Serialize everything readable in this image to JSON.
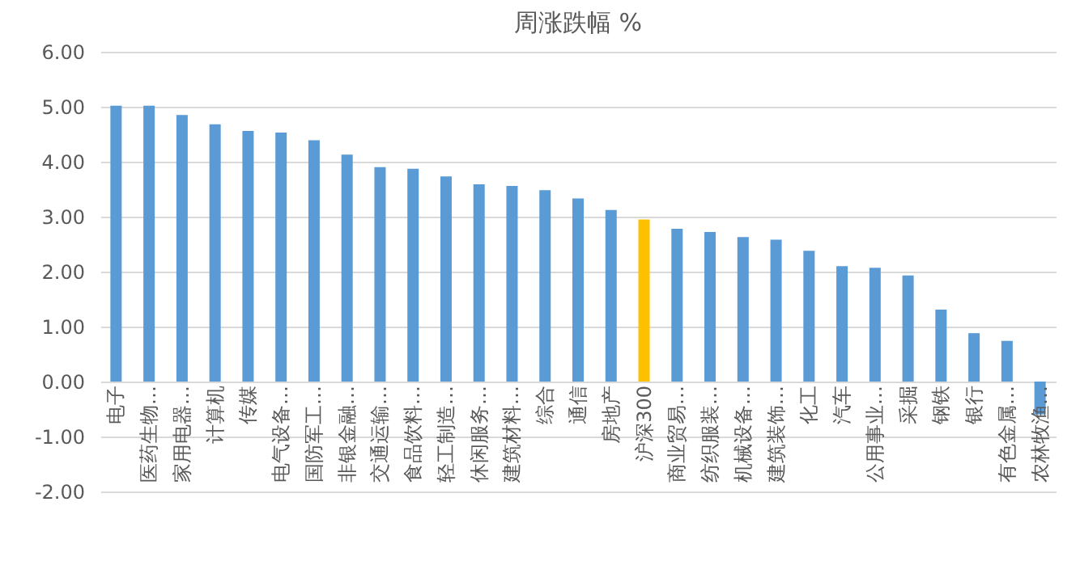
{
  "chart_data": {
    "type": "bar",
    "title": "周涨跌幅 %",
    "categories": [
      "电子",
      "医药生物…",
      "家用电器…",
      "计算机",
      "传媒",
      "电气设备…",
      "国防军工…",
      "非银金融…",
      "交通运输…",
      "食品饮料…",
      "轻工制造…",
      "休闲服务…",
      "建筑材料…",
      "综合",
      "通信",
      "房地产",
      "沪深300",
      "商业贸易…",
      "纺织服装…",
      "机械设备…",
      "建筑装饰…",
      "化工",
      "汽车",
      "公用事业…",
      "采掘",
      "钢铁",
      "银行",
      "有色金属…",
      "农林牧渔…"
    ],
    "values": [
      5.02,
      5.02,
      4.85,
      4.68,
      4.56,
      4.53,
      4.39,
      4.13,
      3.9,
      3.87,
      3.73,
      3.59,
      3.56,
      3.48,
      3.33,
      3.12,
      2.95,
      2.78,
      2.72,
      2.63,
      2.58,
      2.38,
      2.1,
      2.07,
      1.93,
      1.31,
      0.88,
      0.74,
      -0.6
    ],
    "colors": [
      "#5b9bd5",
      "#5b9bd5",
      "#5b9bd5",
      "#5b9bd5",
      "#5b9bd5",
      "#5b9bd5",
      "#5b9bd5",
      "#5b9bd5",
      "#5b9bd5",
      "#5b9bd5",
      "#5b9bd5",
      "#5b9bd5",
      "#5b9bd5",
      "#5b9bd5",
      "#5b9bd5",
      "#5b9bd5",
      "#ffc000",
      "#5b9bd5",
      "#5b9bd5",
      "#5b9bd5",
      "#5b9bd5",
      "#5b9bd5",
      "#5b9bd5",
      "#5b9bd5",
      "#5b9bd5",
      "#5b9bd5",
      "#5b9bd5",
      "#5b9bd5",
      "#5b9bd5"
    ],
    "ylim": [
      -2,
      6
    ],
    "yticks": [
      {
        "value": -2,
        "label": "-2.00"
      },
      {
        "value": -1,
        "label": "-1.00"
      },
      {
        "value": 0,
        "label": "0.00"
      },
      {
        "value": 1,
        "label": "1.00"
      },
      {
        "value": 2,
        "label": "2.00"
      },
      {
        "value": 3,
        "label": "3.00"
      },
      {
        "value": 4,
        "label": "4.00"
      },
      {
        "value": 5,
        "label": "5.00"
      },
      {
        "value": 6,
        "label": "6.00"
      }
    ],
    "grid": "y"
  }
}
